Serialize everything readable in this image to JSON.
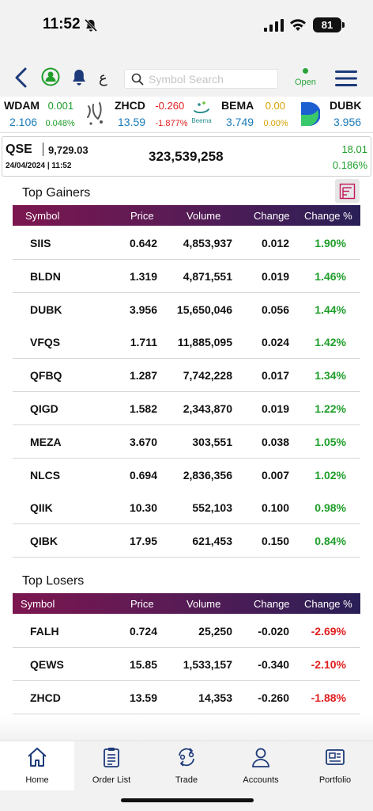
{
  "status_bar": {
    "time": "11:52",
    "battery": "81"
  },
  "header": {
    "lang_toggle": "ع",
    "search_placeholder": "Symbol Search",
    "market_status": "Open"
  },
  "ticker": [
    {
      "symbol": "WDAM",
      "change": "0.001",
      "price": "2.106",
      "percent": "0.048%",
      "dir": "green"
    },
    {
      "symbol": "ZHCD",
      "change": "-0.260",
      "price": "13.59",
      "percent": "-1.877%",
      "dir": "red",
      "logo_text": "Beema"
    },
    {
      "symbol": "BEMA",
      "change": "0.00",
      "price": "3.749",
      "percent": "0.00%",
      "dir": "amber"
    },
    {
      "symbol": "DUBK",
      "change": "",
      "price": "3.956",
      "percent": "",
      "dir": "green"
    }
  ],
  "index": {
    "name": "QSE",
    "value": "9,729.03",
    "datetime": "24/04/2024 | 11:52",
    "volume": "323,539,258",
    "change": "18.01",
    "percent": "0.186%"
  },
  "columns": {
    "symbol": "Symbol",
    "price": "Price",
    "volume": "Volume",
    "change": "Change",
    "percent": "Change %"
  },
  "top_gainers": {
    "title": "Top Gainers",
    "rows": [
      {
        "symbol": "SIIS",
        "price": "0.642",
        "volume": "4,853,937",
        "change": "0.012",
        "percent": "1.90%"
      },
      {
        "symbol": "BLDN",
        "price": "1.319",
        "volume": "4,871,551",
        "change": "0.019",
        "percent": "1.46%"
      },
      {
        "symbol": "DUBK",
        "price": "3.956",
        "volume": "15,650,046",
        "change": "0.056",
        "percent": "1.44%"
      },
      {
        "symbol": "VFQS",
        "price": "1.711",
        "volume": "11,885,095",
        "change": "0.024",
        "percent": "1.42%"
      },
      {
        "symbol": "QFBQ",
        "price": "1.287",
        "volume": "7,742,228",
        "change": "0.017",
        "percent": "1.34%"
      },
      {
        "symbol": "QIGD",
        "price": "1.582",
        "volume": "2,343,870",
        "change": "0.019",
        "percent": "1.22%"
      },
      {
        "symbol": "MEZA",
        "price": "3.670",
        "volume": "303,551",
        "change": "0.038",
        "percent": "1.05%"
      },
      {
        "symbol": "NLCS",
        "price": "0.694",
        "volume": "2,836,356",
        "change": "0.007",
        "percent": "1.02%"
      },
      {
        "symbol": "QIIK",
        "price": "10.30",
        "volume": "552,103",
        "change": "0.100",
        "percent": "0.98%"
      },
      {
        "symbol": "QIBK",
        "price": "17.95",
        "volume": "621,453",
        "change": "0.150",
        "percent": "0.84%"
      }
    ]
  },
  "top_losers": {
    "title": "Top Losers",
    "rows": [
      {
        "symbol": "FALH",
        "price": "0.724",
        "volume": "25,250",
        "change": "-0.020",
        "percent": "-2.69%"
      },
      {
        "symbol": "QEWS",
        "price": "15.85",
        "volume": "1,533,157",
        "change": "-0.340",
        "percent": "-2.10%"
      },
      {
        "symbol": "ZHCD",
        "price": "13.59",
        "volume": "14,353",
        "change": "-0.260",
        "percent": "-1.88%"
      }
    ]
  },
  "bottom_nav": [
    {
      "label": "Home",
      "icon": "home-icon",
      "active": true
    },
    {
      "label": "Order List",
      "icon": "clipboard-icon",
      "active": false
    },
    {
      "label": "Trade",
      "icon": "trade-icon",
      "active": false
    },
    {
      "label": "Accounts",
      "icon": "user-icon",
      "active": false
    },
    {
      "label": "Portfolio",
      "icon": "portfolio-icon",
      "active": false
    }
  ],
  "colors": {
    "gain": "#1f9e2a",
    "loss": "#e11d1d",
    "neutral": "#d4a400",
    "header_gradient_start": "#7c164f",
    "header_gradient_end": "#2a1f57",
    "price_blue": "#1a7bb8"
  }
}
